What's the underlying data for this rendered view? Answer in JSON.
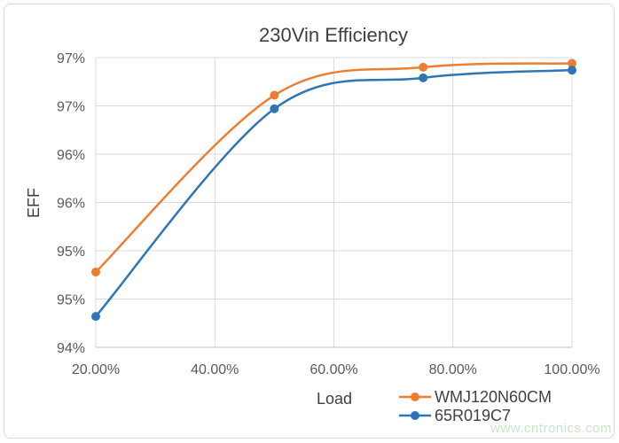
{
  "chart_data": {
    "type": "line",
    "title": "230Vin Efficiency",
    "xlabel": "Load",
    "ylabel": "EFF",
    "x": [
      0.2,
      0.5,
      0.75,
      1.0
    ],
    "x_tick_labels": [
      "20.00%",
      "40.00%",
      "60.00%",
      "80.00%",
      "100.00%"
    ],
    "xlim": [
      0.2,
      1.0
    ],
    "y_tick_labels": [
      "94%",
      "95%",
      "95%",
      "96%",
      "96%",
      "97%",
      "97%"
    ],
    "ylim": [
      94.0,
      97.0
    ],
    "grid": true,
    "legend_position": "bottom-right",
    "series": [
      {
        "name": "WMJ120N60CM",
        "color": "#ed7d31",
        "values": [
          94.78,
          96.61,
          96.9,
          96.94
        ]
      },
      {
        "name": "65R019C7",
        "color": "#2e75b6",
        "values": [
          94.32,
          96.47,
          96.79,
          96.87
        ]
      }
    ]
  },
  "watermark": "www.cntronics.com"
}
